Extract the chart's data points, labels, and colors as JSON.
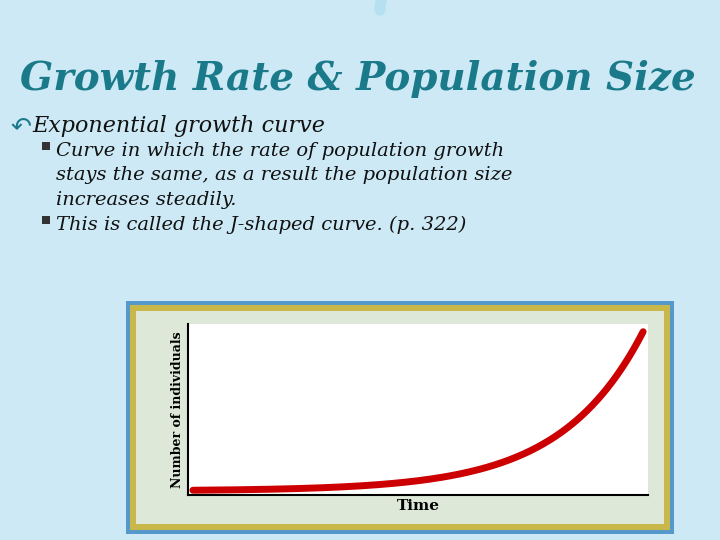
{
  "title": "Growth Rate & Population Size",
  "title_color": "#1a7a8a",
  "title_fontsize": 28,
  "bullet_symbol": "↶",
  "bullet1_text": "Exponential growth curve",
  "bullet1_fontsize": 16,
  "bullet1_color": "#1a7a8a",
  "sub1": "Curve in which the rate of population growth\nstays the same, as a result the population size\nincreases steadily.",
  "sub2": "This is called the J-shaped curve. (p. 322)",
  "sub_fontsize": 14,
  "sub_color": "#111111",
  "bg_color": "#cce9f5",
  "chart_outer_color": "#c8b84a",
  "chart_inner_color": "#dde8d8",
  "chart_plot_bg": "#ffffff",
  "chart_border_color": "#5599cc",
  "curve_color": "#cc0000",
  "curve_linewidth": 5,
  "xlabel": "Time",
  "ylabel": "Number of individuals",
  "xlabel_fontsize": 11,
  "ylabel_fontsize": 9,
  "wave1_color": "#ffffff",
  "wave2_color": "#aaddee"
}
